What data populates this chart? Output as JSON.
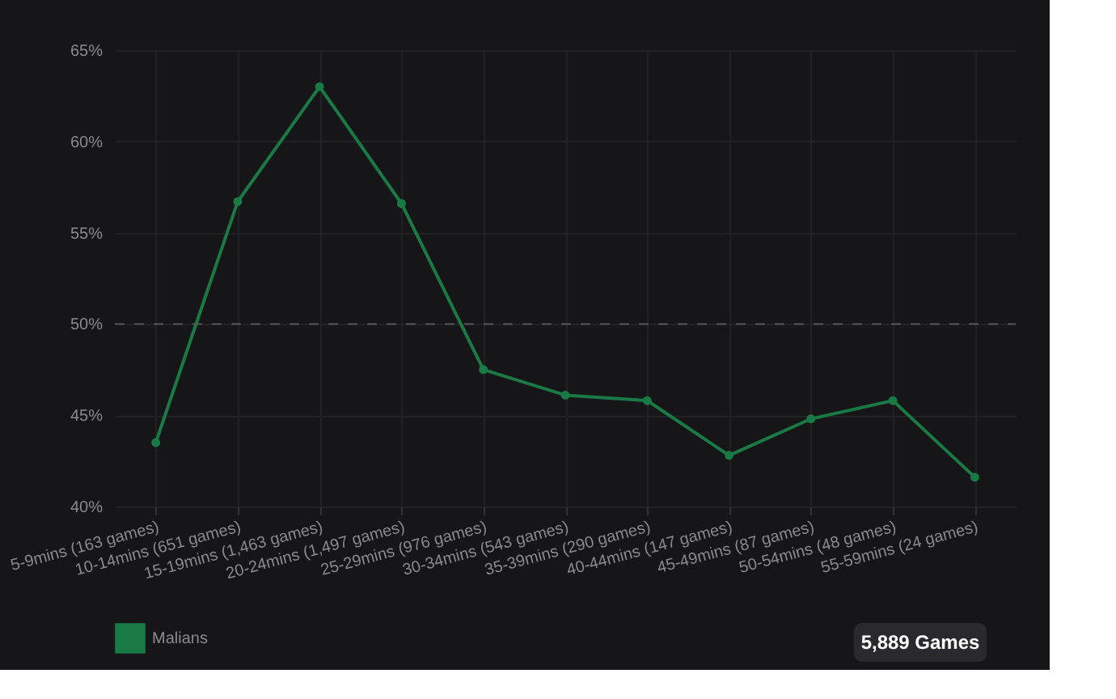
{
  "chart_data": {
    "type": "line",
    "categories": [
      "5-9mins (163 games)",
      "10-14mins (651 games)",
      "15-19mins (1,463 games)",
      "20-24mins (1,497 games)",
      "25-29mins (976 games)",
      "30-34mins (543 games)",
      "35-39mins (290 games)",
      "40-44mins (147 games)",
      "45-49mins (87 games)",
      "50-54mins (48 games)",
      "55-59mins (24 games)"
    ],
    "series": [
      {
        "name": "Malians",
        "color": "#1a7a45",
        "values": [
          43.5,
          56.7,
          63.0,
          56.6,
          47.5,
          46.1,
          45.8,
          42.8,
          44.8,
          45.8,
          41.6
        ]
      }
    ],
    "ylim": [
      40,
      65
    ],
    "yticks": [
      {
        "value": 40,
        "label": "40%"
      },
      {
        "value": 45,
        "label": "45%"
      },
      {
        "value": 50,
        "label": "50%"
      },
      {
        "value": 55,
        "label": "55%"
      },
      {
        "value": 60,
        "label": "60%"
      },
      {
        "value": 65,
        "label": "65%"
      }
    ],
    "ref_lines": [
      {
        "axis": "y",
        "value": 50,
        "label": null,
        "color": "#555555",
        "line_style": "dashed"
      }
    ],
    "annotations": [
      "5,889 Games"
    ],
    "grid": true,
    "legend": "bottom",
    "marker": "circle",
    "line_style": "solid"
  }
}
